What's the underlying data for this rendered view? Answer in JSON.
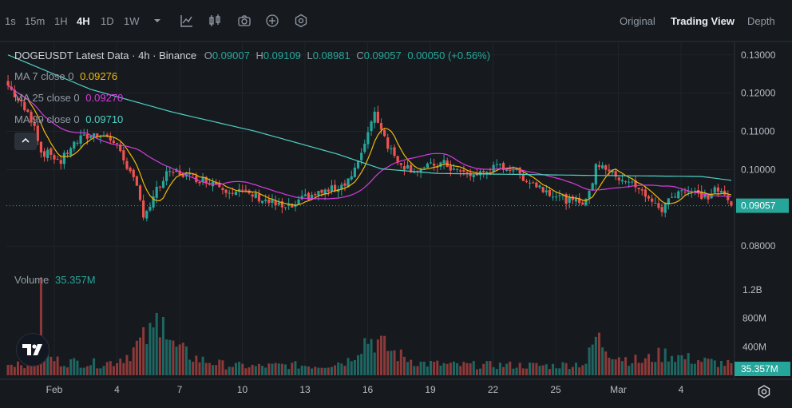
{
  "toolbar": {
    "intervals": [
      "1s",
      "15m",
      "1H",
      "4H",
      "1D",
      "1W"
    ],
    "active_interval": "4H",
    "views": [
      "Original",
      "Trading View",
      "Depth"
    ],
    "active_view": "Trading View"
  },
  "legend": {
    "title": "DOGEUSDT Latest Data · 4h · Binance",
    "o_label": "O",
    "o_value": "0.09007",
    "h_label": "H",
    "h_value": "0.09109",
    "l_label": "L",
    "l_value": "0.08981",
    "c_label": "C",
    "c_value": "0.09057",
    "change": "0.00050 (+0.56%)",
    "ma7_label": "MA 7 close 0",
    "ma7_value": "0.09276",
    "ma25_label": "MA 25 close 0",
    "ma25_value": "0.09270",
    "ma99_label": "MA 99 close 0",
    "ma99_value": "0.09710",
    "volume_label": "Volume",
    "volume_value": "35.357M"
  },
  "colors": {
    "up": "#26a69a",
    "down": "#ef5350",
    "ma7": "#f0b90b",
    "ma25": "#d63be0",
    "ma99": "#4fd1c5",
    "background": "#161a1e"
  },
  "chart_data": {
    "type": "candlestick",
    "symbol": "DOGEUSDT",
    "interval": "4h",
    "x_ticks": [
      "Feb",
      "4",
      "7",
      "10",
      "13",
      "16",
      "19",
      "22",
      "25",
      "Mar",
      "4"
    ],
    "y_ticks": [
      "0.13000",
      "0.12000",
      "0.11000",
      "0.10000",
      "0.08000"
    ],
    "ylim": [
      0.0765,
      0.1335
    ],
    "last_price": "0.09057",
    "volume_ticks": [
      "1.2B",
      "800M",
      "400M"
    ],
    "volume_last": "35.357M",
    "volume_max": 1400,
    "close_anchors": [
      [
        0,
        0.122
      ],
      [
        4,
        0.117
      ],
      [
        8,
        0.112
      ],
      [
        10,
        0.1045
      ],
      [
        13,
        0.104
      ],
      [
        16,
        0.102
      ],
      [
        19,
        0.106
      ],
      [
        22,
        0.108
      ],
      [
        25,
        0.109
      ],
      [
        28,
        0.1095
      ],
      [
        31,
        0.108
      ],
      [
        34,
        0.105
      ],
      [
        36,
        0.101
      ],
      [
        39,
        0.095
      ],
      [
        41,
        0.0885
      ],
      [
        43,
        0.0905
      ],
      [
        45,
        0.0945
      ],
      [
        48,
        0.0985
      ],
      [
        51,
        0.0995
      ],
      [
        54,
        0.0985
      ],
      [
        58,
        0.0975
      ],
      [
        62,
        0.0968
      ],
      [
        66,
        0.095
      ],
      [
        70,
        0.0943
      ],
      [
        75,
        0.093
      ],
      [
        80,
        0.0912
      ],
      [
        84,
        0.0898
      ],
      [
        87,
        0.0905
      ],
      [
        90,
        0.0928
      ],
      [
        94,
        0.0938
      ],
      [
        98,
        0.0948
      ],
      [
        101,
        0.096
      ],
      [
        104,
        0.0985
      ],
      [
        107,
        0.1035
      ],
      [
        109,
        0.1105
      ],
      [
        111,
        0.115
      ],
      [
        113,
        0.111
      ],
      [
        115,
        0.1065
      ],
      [
        117,
        0.1035
      ],
      [
        120,
        0.101
      ],
      [
        123,
        0.1
      ],
      [
        126,
        0.1003
      ],
      [
        129,
        0.1012
      ],
      [
        132,
        0.1015
      ],
      [
        135,
        0.1
      ],
      [
        138,
        0.099
      ],
      [
        141,
        0.0985
      ],
      [
        144,
        0.0993
      ],
      [
        147,
        0.1003
      ],
      [
        150,
        0.1008
      ],
      [
        153,
        0.1001
      ],
      [
        156,
        0.098
      ],
      [
        159,
        0.0965
      ],
      [
        162,
        0.095
      ],
      [
        165,
        0.0938
      ],
      [
        168,
        0.0925
      ],
      [
        171,
        0.0915
      ],
      [
        174,
        0.0918
      ],
      [
        176,
        0.0935
      ],
      [
        178,
        0.101
      ],
      [
        180,
        0.1015
      ],
      [
        182,
        0.0995
      ],
      [
        185,
        0.098
      ],
      [
        188,
        0.097
      ],
      [
        191,
        0.0945
      ],
      [
        194,
        0.093
      ],
      [
        196,
        0.0905
      ],
      [
        198,
        0.0895
      ],
      [
        200,
        0.092
      ],
      [
        203,
        0.0948
      ],
      [
        206,
        0.0945
      ],
      [
        209,
        0.0935
      ],
      [
        212,
        0.0928
      ],
      [
        214,
        0.095
      ],
      [
        216,
        0.0938
      ],
      [
        218,
        0.0918
      ],
      [
        220,
        0.0905
      ]
    ],
    "ma99_anchors": [
      [
        0,
        0.13
      ],
      [
        25,
        0.121
      ],
      [
        50,
        0.115
      ],
      [
        75,
        0.11
      ],
      [
        100,
        0.104
      ],
      [
        113,
        0.1002
      ],
      [
        130,
        0.099
      ],
      [
        150,
        0.0988
      ],
      [
        175,
        0.0985
      ],
      [
        200,
        0.0983
      ],
      [
        210,
        0.0982
      ],
      [
        219,
        0.0972
      ]
    ],
    "volume_anchors": [
      [
        0,
        160
      ],
      [
        3,
        200
      ],
      [
        7,
        160
      ],
      [
        9,
        650
      ],
      [
        10,
        1050
      ],
      [
        12,
        260
      ],
      [
        16,
        200
      ],
      [
        22,
        190
      ],
      [
        28,
        170
      ],
      [
        32,
        200
      ],
      [
        36,
        300
      ],
      [
        40,
        480
      ],
      [
        44,
        620
      ],
      [
        46,
        950
      ],
      [
        47,
        1250
      ],
      [
        48,
        620
      ],
      [
        50,
        420
      ],
      [
        54,
        320
      ],
      [
        58,
        230
      ],
      [
        66,
        150
      ],
      [
        75,
        130
      ],
      [
        85,
        150
      ],
      [
        95,
        140
      ],
      [
        103,
        220
      ],
      [
        107,
        480
      ],
      [
        109,
        540
      ],
      [
        111,
        520
      ],
      [
        114,
        420
      ],
      [
        118,
        300
      ],
      [
        125,
        180
      ],
      [
        135,
        150
      ],
      [
        150,
        150
      ],
      [
        165,
        140
      ],
      [
        175,
        180
      ],
      [
        178,
        560
      ],
      [
        182,
        380
      ],
      [
        186,
        260
      ],
      [
        192,
        200
      ],
      [
        196,
        280
      ],
      [
        200,
        320
      ],
      [
        205,
        250
      ],
      [
        212,
        200
      ],
      [
        219,
        160
      ]
    ],
    "candle_count": 220
  }
}
